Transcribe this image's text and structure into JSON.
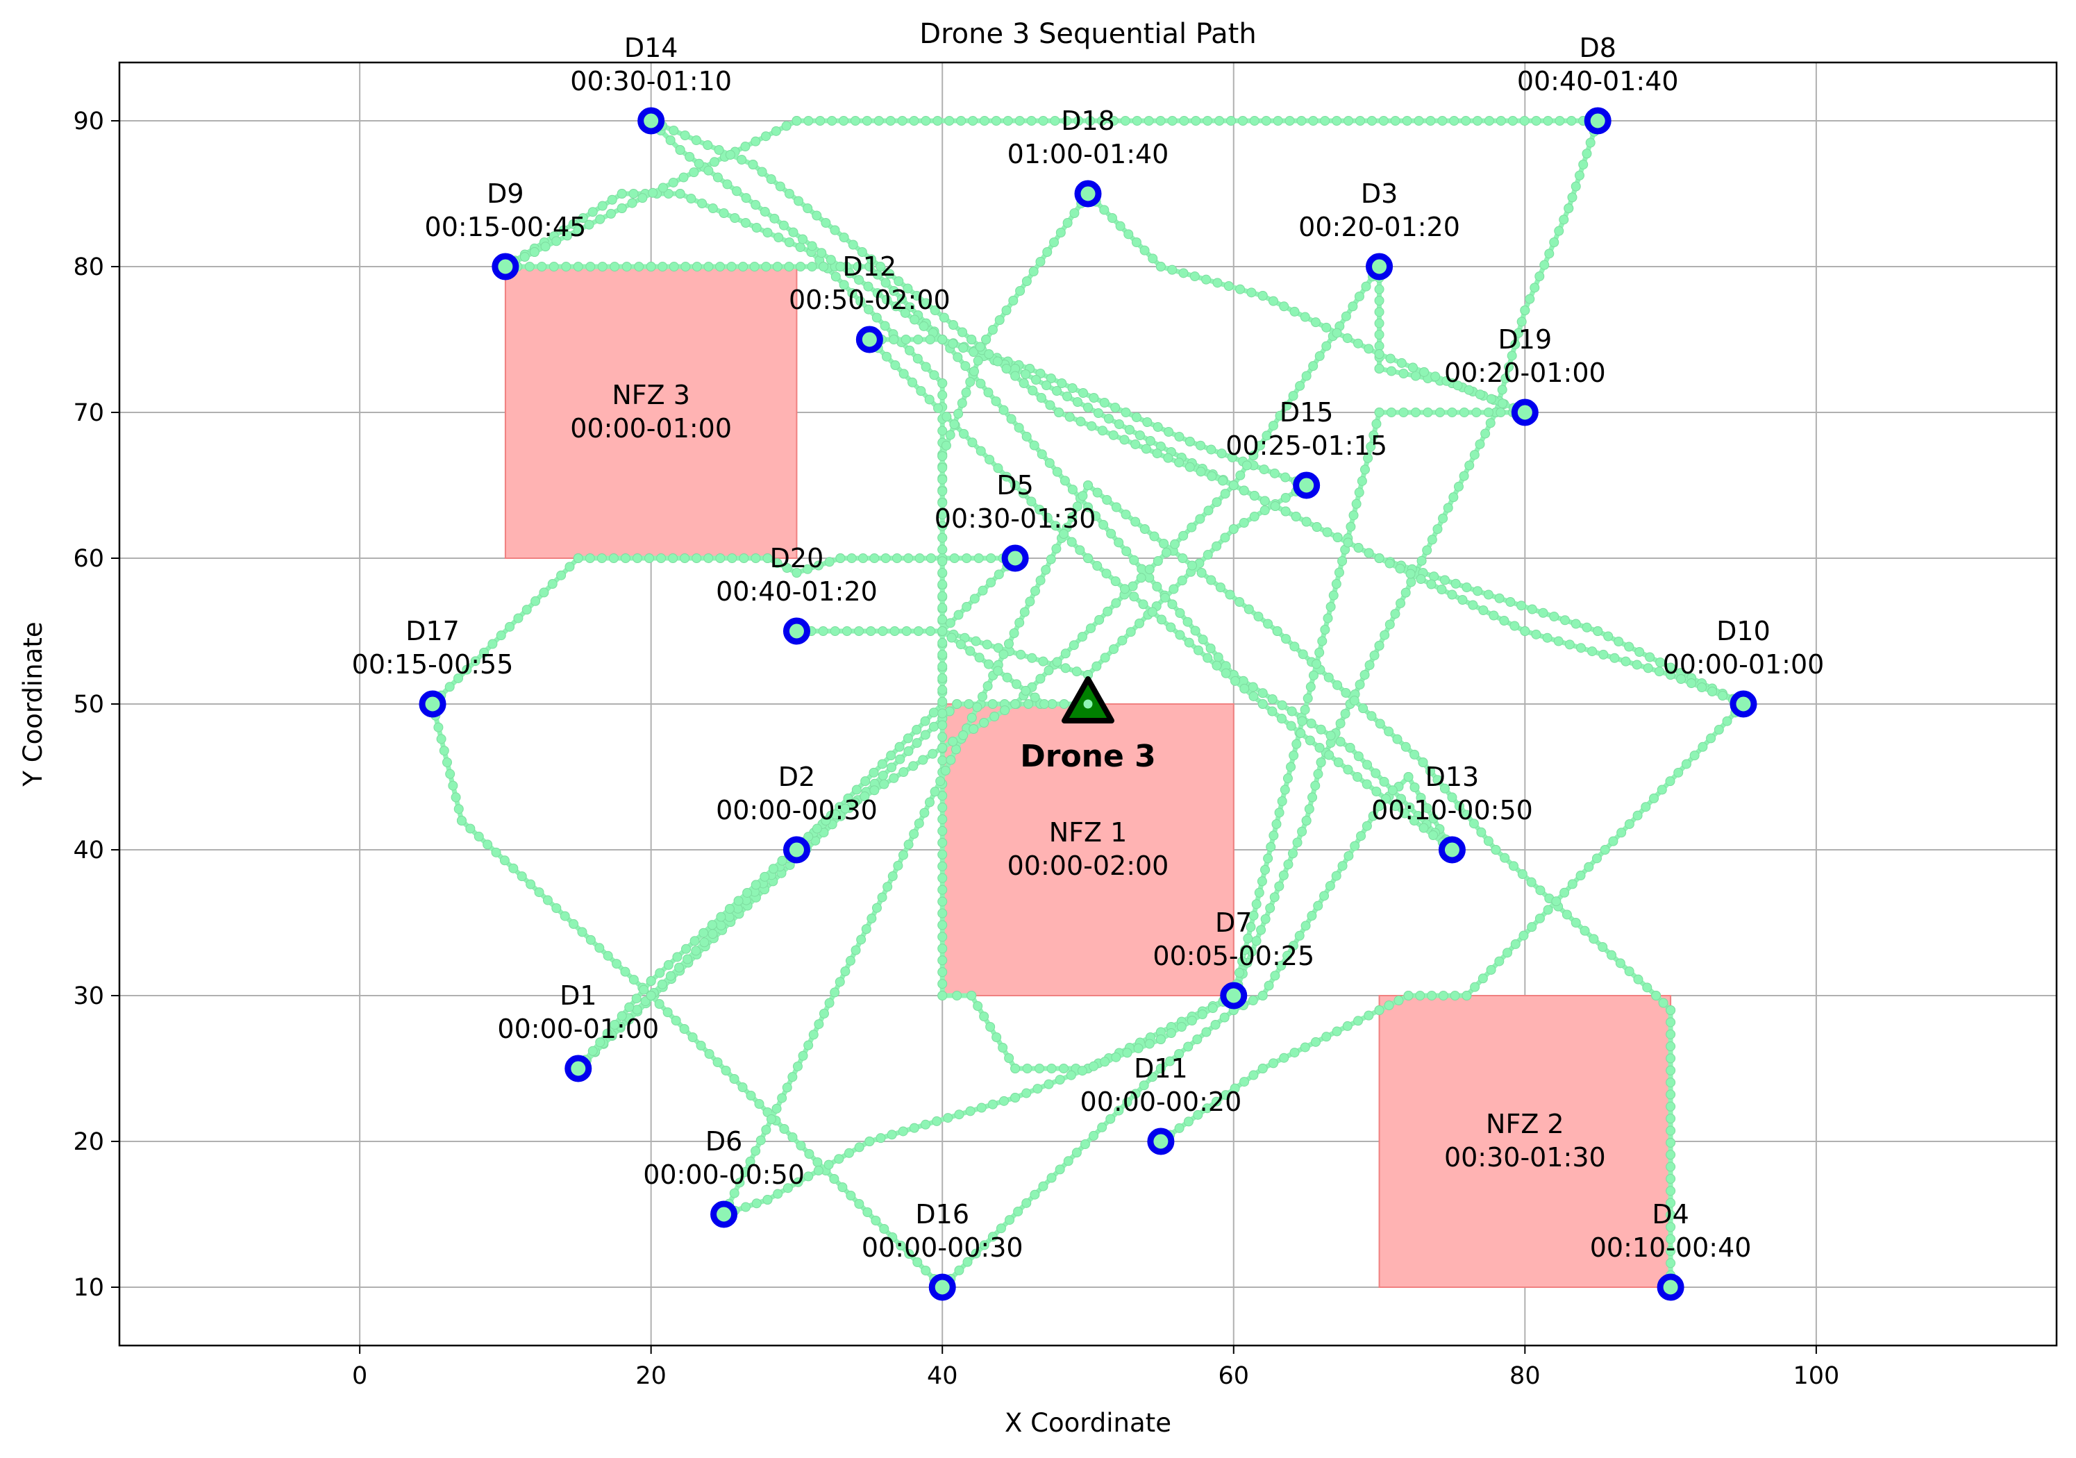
{
  "chart_data": {
    "type": "scatter",
    "title": "Drone 3 Sequential Path",
    "xlabel": "X Coordinate",
    "ylabel": "Y Coordinate",
    "xlim": [
      -16.5,
      116.5
    ],
    "ylim": [
      6,
      94
    ],
    "xticks": [
      0,
      20,
      40,
      60,
      80,
      100
    ],
    "yticks": [
      10,
      20,
      30,
      40,
      50,
      60,
      70,
      80,
      90
    ],
    "grid": true,
    "colors": {
      "path": "#8ef5b4",
      "delivery": "#0000ee",
      "nfz_fill": "#ffb3b3",
      "nfz_edge": "#f08080",
      "drone": "#008000"
    },
    "no_fly_zones": [
      {
        "name": "NFZ 1",
        "time": "00:00-02:00",
        "x": [
          40,
          60
        ],
        "y": [
          30,
          50
        ]
      },
      {
        "name": "NFZ 2",
        "time": "00:30-01:30",
        "x": [
          70,
          90
        ],
        "y": [
          10,
          30
        ]
      },
      {
        "name": "NFZ 3",
        "time": "00:00-01:00",
        "x": [
          10,
          30
        ],
        "y": [
          60,
          80
        ]
      }
    ],
    "deliveries": [
      {
        "id": "D1",
        "time": "00:00-01:00",
        "x": 15,
        "y": 25
      },
      {
        "id": "D2",
        "time": "00:00-00:30",
        "x": 30,
        "y": 40
      },
      {
        "id": "D3",
        "time": "00:20-01:20",
        "x": 70,
        "y": 80
      },
      {
        "id": "D4",
        "time": "00:10-00:40",
        "x": 90,
        "y": 10
      },
      {
        "id": "D5",
        "time": "00:30-01:30",
        "x": 45,
        "y": 60
      },
      {
        "id": "D6",
        "time": "00:00-00:50",
        "x": 25,
        "y": 15
      },
      {
        "id": "D7",
        "time": "00:05-00:25",
        "x": 60,
        "y": 30
      },
      {
        "id": "D8",
        "time": "00:40-01:40",
        "x": 85,
        "y": 90
      },
      {
        "id": "D9",
        "time": "00:15-00:45",
        "x": 10,
        "y": 80
      },
      {
        "id": "D10",
        "time": "00:00-01:00",
        "x": 95,
        "y": 50
      },
      {
        "id": "D11",
        "time": "00:00-00:20",
        "x": 55,
        "y": 20
      },
      {
        "id": "D12",
        "time": "00:50-02:00",
        "x": 35,
        "y": 75
      },
      {
        "id": "D13",
        "time": "00:10-00:50",
        "x": 75,
        "y": 40
      },
      {
        "id": "D14",
        "time": "00:30-01:10",
        "x": 20,
        "y": 90
      },
      {
        "id": "D15",
        "time": "00:25-01:15",
        "x": 65,
        "y": 65
      },
      {
        "id": "D16",
        "time": "00:00-00:30",
        "x": 40,
        "y": 10
      },
      {
        "id": "D17",
        "time": "00:15-00:55",
        "x": 5,
        "y": 50
      },
      {
        "id": "D18",
        "time": "01:00-01:40",
        "x": 50,
        "y": 85
      },
      {
        "id": "D19",
        "time": "00:20-01:00",
        "x": 80,
        "y": 70
      },
      {
        "id": "D20",
        "time": "00:40-01:20",
        "x": 30,
        "y": 55
      }
    ],
    "drone": {
      "label": "Drone 3",
      "x": 50,
      "y": 50
    },
    "path_segments": [
      [
        [
          50,
          50
        ],
        [
          41,
          50
        ],
        [
          40,
          49
        ],
        [
          15,
          25
        ]
      ],
      [
        [
          15,
          25
        ],
        [
          30,
          40
        ]
      ],
      [
        [
          30,
          40
        ],
        [
          40,
          50
        ],
        [
          40,
          72
        ],
        [
          31,
          81
        ],
        [
          22,
          85
        ],
        [
          18,
          85
        ],
        [
          10,
          80
        ]
      ],
      [
        [
          10,
          80
        ],
        [
          12,
          81
        ],
        [
          18,
          84
        ],
        [
          30,
          90
        ],
        [
          84,
          90
        ],
        [
          85,
          90
        ]
      ],
      [
        [
          85,
          90
        ],
        [
          83,
          84
        ],
        [
          80,
          77
        ],
        [
          78,
          70
        ],
        [
          70,
          54
        ],
        [
          68,
          50
        ],
        [
          66,
          46
        ],
        [
          65,
          42
        ],
        [
          60,
          30
        ]
      ],
      [
        [
          60,
          30
        ],
        [
          50,
          25
        ],
        [
          45,
          25
        ],
        [
          42,
          30
        ],
        [
          40,
          30
        ],
        [
          40,
          55
        ],
        [
          45,
          60
        ]
      ],
      [
        [
          45,
          60
        ],
        [
          40,
          60
        ],
        [
          33,
          60
        ],
        [
          30,
          59
        ],
        [
          28,
          60
        ],
        [
          15,
          60
        ],
        [
          5,
          50
        ]
      ],
      [
        [
          5,
          50
        ],
        [
          7,
          42
        ],
        [
          20,
          30
        ],
        [
          40,
          10
        ]
      ],
      [
        [
          40,
          10
        ],
        [
          55,
          25
        ],
        [
          60,
          29
        ],
        [
          62,
          30
        ],
        [
          70,
          43
        ],
        [
          72,
          45
        ],
        [
          75,
          40
        ]
      ],
      [
        [
          75,
          40
        ],
        [
          68,
          47
        ],
        [
          60,
          52
        ],
        [
          40,
          75
        ],
        [
          35,
          80
        ],
        [
          20,
          80
        ],
        [
          10,
          80
        ]
      ],
      [
        [
          20,
          90
        ],
        [
          22,
          88
        ],
        [
          33,
          80
        ],
        [
          40,
          75
        ],
        [
          46,
          73
        ],
        [
          57,
          68
        ],
        [
          65,
          65
        ]
      ],
      [
        [
          65,
          65
        ],
        [
          60,
          62
        ],
        [
          50,
          52
        ],
        [
          40,
          55
        ],
        [
          31,
          55
        ],
        [
          30,
          55
        ]
      ],
      [
        [
          90,
          10
        ],
        [
          90,
          29
        ],
        [
          89,
          30
        ],
        [
          78,
          40
        ],
        [
          73,
          46
        ],
        [
          63,
          55
        ],
        [
          50,
          65
        ],
        [
          25,
          15
        ]
      ],
      [
        [
          25,
          15
        ],
        [
          28,
          16
        ],
        [
          35,
          20
        ],
        [
          45,
          23
        ],
        [
          55,
          27
        ],
        [
          60,
          30
        ]
      ],
      [
        [
          60,
          30
        ],
        [
          70,
          70
        ],
        [
          80,
          70
        ]
      ],
      [
        [
          80,
          70
        ],
        [
          75,
          72
        ],
        [
          70,
          73
        ],
        [
          70,
          80
        ],
        [
          60,
          65
        ],
        [
          45,
          50
        ],
        [
          40,
          47
        ],
        [
          32,
          42
        ],
        [
          20,
          31
        ],
        [
          15,
          25
        ]
      ],
      [
        [
          55,
          20
        ],
        [
          62,
          25
        ],
        [
          70,
          29
        ],
        [
          72,
          30
        ],
        [
          76,
          30
        ],
        [
          95,
          50
        ]
      ],
      [
        [
          95,
          50
        ],
        [
          85,
          55
        ],
        [
          70,
          60
        ],
        [
          60,
          65
        ],
        [
          45,
          73
        ],
        [
          40,
          75
        ],
        [
          35,
          75
        ]
      ],
      [
        [
          35,
          75
        ],
        [
          45,
          65
        ],
        [
          50,
          60
        ],
        [
          62,
          50
        ],
        [
          75,
          40
        ]
      ],
      [
        [
          50,
          85
        ],
        [
          43,
          75
        ],
        [
          40,
          67
        ],
        [
          40,
          55
        ],
        [
          47,
          50
        ]
      ],
      [
        [
          50,
          85
        ],
        [
          55,
          80
        ],
        [
          62,
          78
        ],
        [
          70,
          74
        ],
        [
          80,
          70
        ]
      ],
      [
        [
          20,
          90
        ],
        [
          27,
          87
        ],
        [
          42,
          75
        ],
        [
          48,
          70
        ],
        [
          60,
          65
        ],
        [
          70,
          60
        ],
        [
          80,
          55
        ],
        [
          90,
          52
        ],
        [
          95,
          50
        ]
      ]
    ]
  }
}
